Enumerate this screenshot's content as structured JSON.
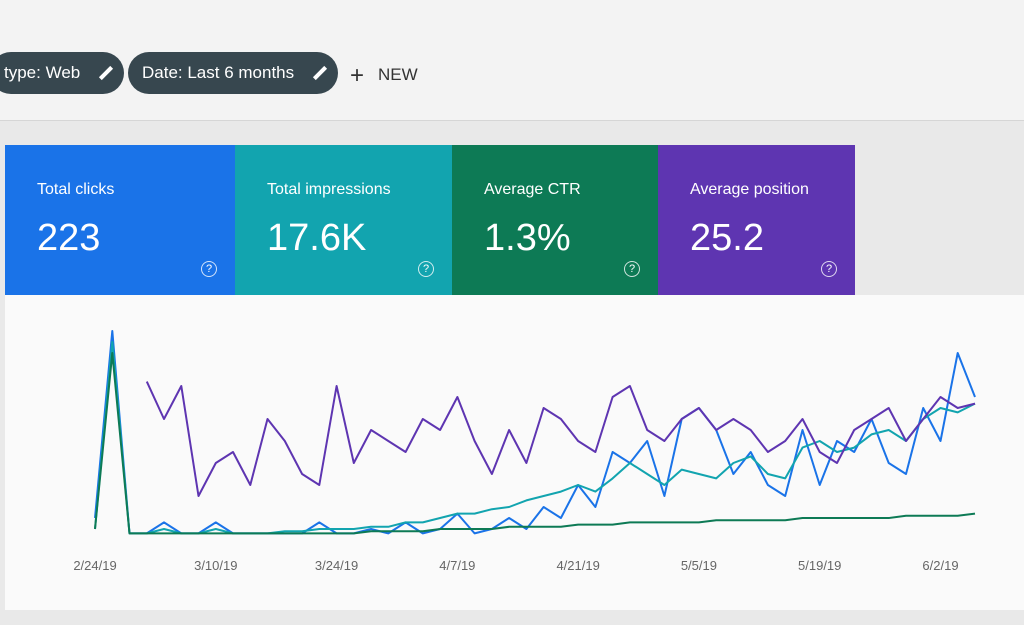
{
  "toolbar": {
    "filters": [
      "type: Web",
      "Date: Last 6 months"
    ],
    "new_button": "NEW"
  },
  "chart_data": {
    "type": "line",
    "ylim": [
      0,
      100
    ],
    "categories": [
      "2/24/19",
      null,
      null,
      null,
      null,
      null,
      null,
      "3/10/19",
      null,
      null,
      null,
      null,
      null,
      null,
      "3/24/19",
      null,
      null,
      null,
      null,
      null,
      null,
      "4/7/19",
      null,
      null,
      null,
      null,
      null,
      null,
      "4/21/19",
      null,
      null,
      null,
      null,
      null,
      null,
      "5/5/19",
      null,
      null,
      null,
      null,
      null,
      null,
      "5/19/19",
      null,
      null,
      null,
      null,
      null,
      null,
      "6/2/19",
      null,
      null
    ],
    "series": [
      {
        "name": "Total clicks",
        "total": "223",
        "color": "#1a73e8",
        "values": [
          10,
          95,
          3,
          3,
          8,
          3,
          3,
          8,
          3,
          3,
          3,
          3,
          3,
          8,
          3,
          3,
          5,
          3,
          8,
          3,
          5,
          12,
          3,
          5,
          10,
          5,
          15,
          10,
          25,
          15,
          40,
          35,
          45,
          20,
          55,
          60,
          50,
          30,
          40,
          25,
          20,
          50,
          25,
          45,
          40,
          55,
          35,
          30,
          60,
          45,
          85,
          65
        ]
      },
      {
        "name": "Total impressions",
        "total": "17.6K",
        "color": "#12a4af",
        "values": [
          5,
          90,
          3,
          3,
          5,
          3,
          3,
          5,
          3,
          3,
          3,
          4,
          4,
          5,
          5,
          5,
          6,
          6,
          8,
          8,
          10,
          12,
          12,
          14,
          15,
          18,
          20,
          22,
          25,
          22,
          28,
          35,
          30,
          25,
          32,
          30,
          28,
          35,
          38,
          30,
          28,
          42,
          45,
          40,
          42,
          48,
          50,
          45,
          55,
          60,
          58,
          62
        ]
      },
      {
        "name": "Average CTR",
        "total": "1.3%",
        "color": "#0d7a55",
        "values": [
          5,
          85,
          3,
          3,
          3,
          3,
          3,
          3,
          3,
          3,
          3,
          3,
          3,
          3,
          3,
          3,
          4,
          4,
          4,
          4,
          5,
          5,
          5,
          5,
          6,
          6,
          6,
          6,
          7,
          7,
          7,
          8,
          8,
          8,
          8,
          8,
          9,
          9,
          9,
          9,
          9,
          10,
          10,
          10,
          10,
          10,
          10,
          11,
          11,
          11,
          11,
          12
        ]
      },
      {
        "name": "Average position",
        "total": "25.2",
        "color": "#5e35b1",
        "values": [
          null,
          null,
          null,
          72,
          55,
          70,
          20,
          35,
          40,
          25,
          55,
          45,
          30,
          25,
          70,
          35,
          50,
          45,
          40,
          55,
          50,
          65,
          45,
          30,
          50,
          35,
          60,
          55,
          45,
          40,
          65,
          70,
          50,
          45,
          55,
          60,
          50,
          55,
          50,
          40,
          45,
          55,
          40,
          35,
          50,
          55,
          60,
          45,
          55,
          65,
          60,
          62
        ]
      }
    ]
  }
}
